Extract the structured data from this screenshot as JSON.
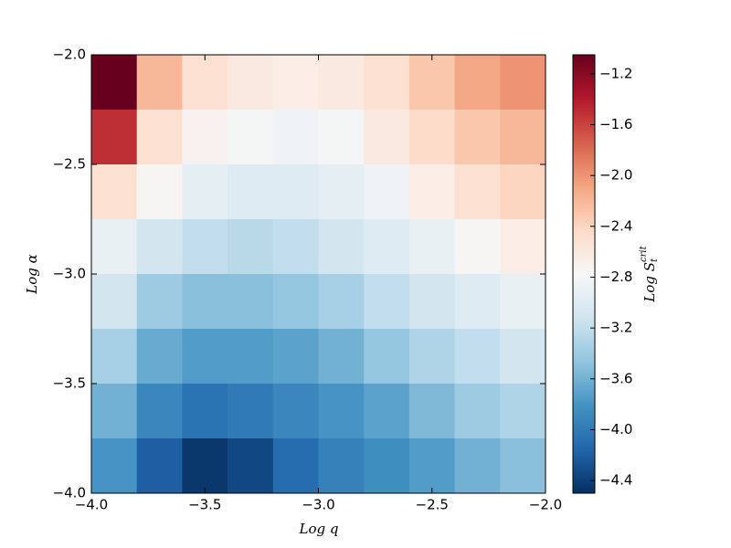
{
  "chart_data": {
    "type": "heatmap",
    "x_label": "Log q",
    "y_label": "Log α",
    "colorbar_label": {
      "base": "Log S",
      "sub": "t",
      "sup": "crit"
    },
    "x": [
      -3.9,
      -3.7,
      -3.5,
      -3.3,
      -3.1,
      -2.9,
      -2.7,
      -2.5,
      -2.3,
      -2.1
    ],
    "y": [
      -2.125,
      -2.375,
      -2.625,
      -2.875,
      -3.125,
      -3.375,
      -3.625,
      -3.875
    ],
    "z": [
      [
        -1.0,
        -2.2,
        -2.5,
        -2.6,
        -2.65,
        -2.6,
        -2.5,
        -2.3,
        -2.1,
        -2.0
      ],
      [
        -1.5,
        -2.5,
        -2.7,
        -2.8,
        -2.85,
        -2.8,
        -2.6,
        -2.45,
        -2.3,
        -2.2
      ],
      [
        -2.5,
        -2.75,
        -2.95,
        -3.0,
        -3.0,
        -2.95,
        -2.85,
        -2.65,
        -2.5,
        -2.4
      ],
      [
        -2.9,
        -3.1,
        -3.2,
        -3.25,
        -3.2,
        -3.1,
        -3.0,
        -2.9,
        -2.75,
        -2.65
      ],
      [
        -3.1,
        -3.4,
        -3.5,
        -3.5,
        -3.45,
        -3.35,
        -3.2,
        -3.1,
        -3.0,
        -2.9
      ],
      [
        -3.35,
        -3.65,
        -3.75,
        -3.75,
        -3.7,
        -3.6,
        -3.45,
        -3.3,
        -3.2,
        -3.1
      ],
      [
        -3.6,
        -3.9,
        -4.05,
        -4.0,
        -3.9,
        -3.8,
        -3.7,
        -3.55,
        -3.4,
        -3.3
      ],
      [
        -3.8,
        -4.2,
        -4.45,
        -4.35,
        -4.1,
        -3.95,
        -3.85,
        -3.75,
        -3.6,
        -3.5
      ]
    ],
    "xlim": [
      -4.0,
      -2.0
    ],
    "ylim": [
      -4.0,
      -2.0
    ],
    "zlim": [
      -4.5,
      -1.05
    ],
    "xticks": [
      {
        "value": -4.0,
        "label": "−4.0"
      },
      {
        "value": -3.5,
        "label": "−3.5"
      },
      {
        "value": -3.0,
        "label": "−3.0"
      },
      {
        "value": -2.5,
        "label": "−2.5"
      },
      {
        "value": -2.0,
        "label": "−2.0"
      }
    ],
    "yticks": [
      {
        "value": -4.0,
        "label": "−4.0"
      },
      {
        "value": -3.5,
        "label": "−3.5"
      },
      {
        "value": -3.0,
        "label": "−3.0"
      },
      {
        "value": -2.5,
        "label": "−2.5"
      },
      {
        "value": -2.0,
        "label": "−2.0"
      }
    ],
    "zticks": [
      {
        "value": -4.4,
        "label": "−4.4"
      },
      {
        "value": -4.0,
        "label": "−4.0"
      },
      {
        "value": -3.6,
        "label": "−3.6"
      },
      {
        "value": -3.2,
        "label": "−3.2"
      },
      {
        "value": -2.8,
        "label": "−2.8"
      },
      {
        "value": -2.4,
        "label": "−2.4"
      },
      {
        "value": -2.0,
        "label": "−2.0"
      },
      {
        "value": -1.6,
        "label": "−1.6"
      },
      {
        "value": -1.2,
        "label": "−1.2"
      }
    ],
    "colormap": [
      "#053061",
      "#2166ac",
      "#4393c3",
      "#92c5de",
      "#d1e5f0",
      "#f7f7f7",
      "#fddbc7",
      "#f4a582",
      "#d6604d",
      "#b2182b",
      "#67001f"
    ]
  }
}
